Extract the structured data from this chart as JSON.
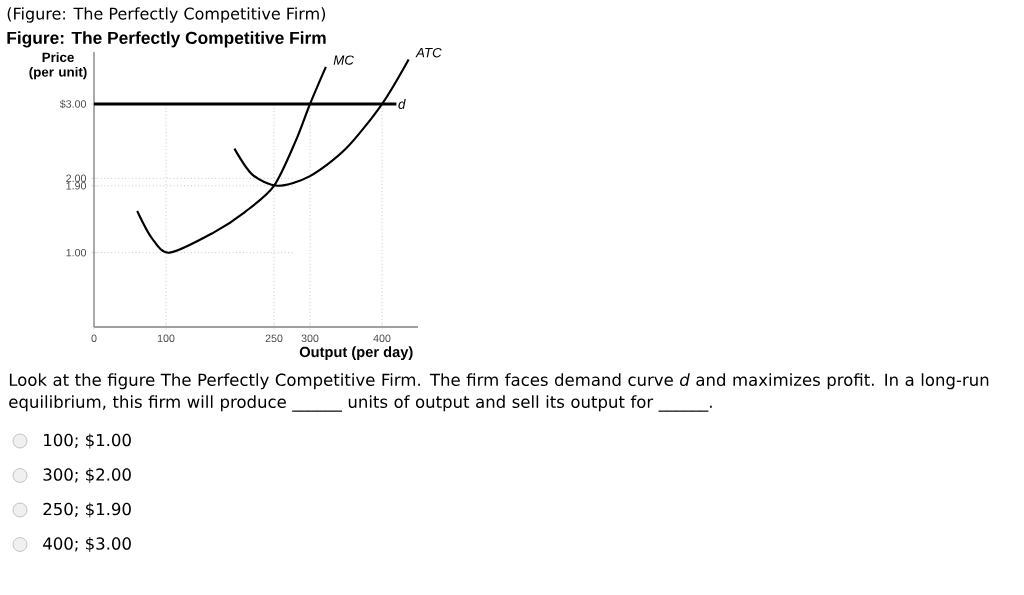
{
  "chart_data": {
    "type": "line",
    "subtitle": "(Figure: The Perfectly Competitive Firm)",
    "title": "Figure: The Perfectly Competitive Firm",
    "xlabel": "Output (per day)",
    "ylabel": "Price (per unit)",
    "xlim": [
      0,
      450
    ],
    "ylim": [
      0,
      3.7
    ],
    "xticks": [
      0,
      100,
      250,
      300,
      400
    ],
    "yticks": [
      {
        "value": 1,
        "label": "1.00"
      },
      {
        "value": 1.9,
        "label": "1.90"
      },
      {
        "value": 2,
        "label": "2.00"
      },
      {
        "value": 3,
        "label": "$3.00"
      }
    ],
    "series": [
      {
        "name": "MC",
        "color": "#000000",
        "x": [
          60,
          80,
          105,
          166,
          210,
          250,
          280,
          300,
          322
        ],
        "values": [
          1.56,
          1.2,
          1.0,
          1.27,
          1.55,
          1.9,
          2.5,
          3.0,
          3.5
        ]
      },
      {
        "name": "ATC",
        "color": "#000000",
        "x": [
          195,
          220,
          255,
          300,
          350,
          400,
          437
        ],
        "values": [
          2.4,
          2.05,
          1.9,
          2.03,
          2.4,
          3.0,
          3.6
        ]
      },
      {
        "name": "d",
        "color": "#000000",
        "x": [
          0,
          420
        ],
        "values": [
          3,
          3
        ]
      }
    ],
    "ref_lines": [
      {
        "axis": "x",
        "value": 100,
        "color": "#aaaaaa",
        "line_style": "dotted"
      },
      {
        "axis": "x",
        "value": 250,
        "color": "#aaaaaa",
        "line_style": "dotted"
      },
      {
        "axis": "x",
        "value": 300,
        "color": "#aaaaaa",
        "line_style": "dotted"
      },
      {
        "axis": "x",
        "value": 400,
        "color": "#aaaaaa",
        "line_style": "dotted"
      },
      {
        "axis": "y",
        "value": 1,
        "color": "#aaaaaa",
        "line_style": "dotted"
      },
      {
        "axis": "y",
        "value": 1.9,
        "color": "#aaaaaa",
        "line_style": "dotted"
      },
      {
        "axis": "y",
        "value": 2,
        "color": "#aaaaaa",
        "line_style": "dotted"
      }
    ],
    "annotations": [
      "Look at the figure The Perfectly Competitive Firm. The firm faces demand curve *d* and maximizes profit. In a long-run equilibrium, this firm will produce ______ units of output and sell its output for ______.",
      "100; $1.00",
      "300; $2.00",
      "250; $1.90",
      "400; $3.00"
    ]
  }
}
